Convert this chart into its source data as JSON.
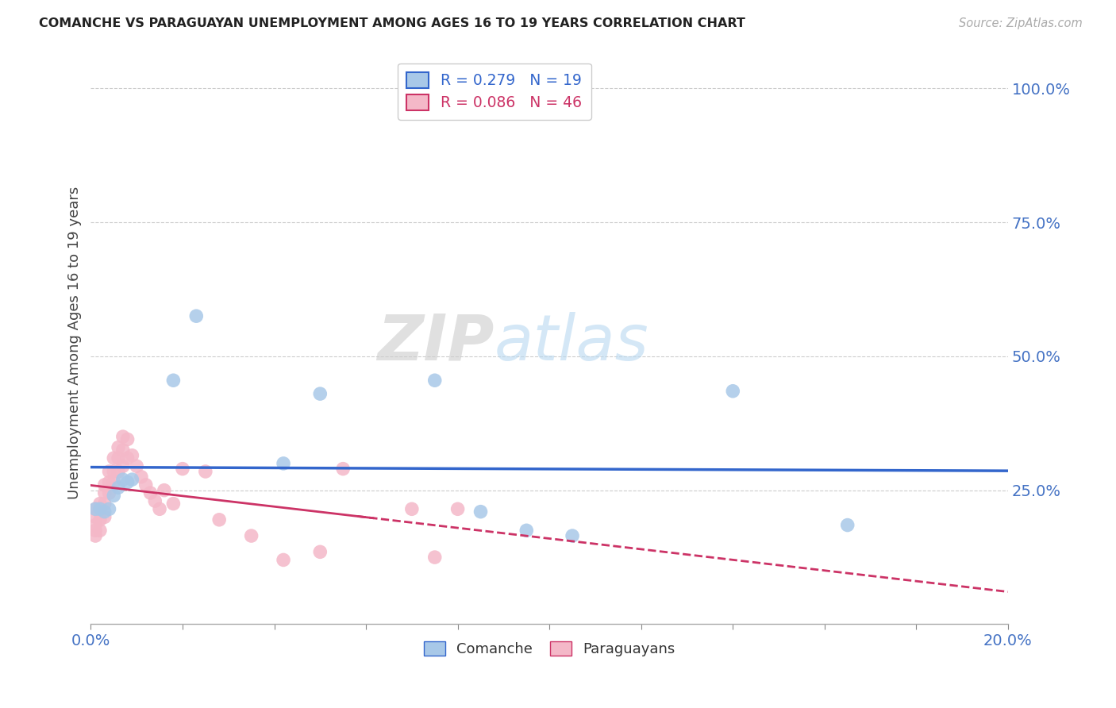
{
  "title": "COMANCHE VS PARAGUAYAN UNEMPLOYMENT AMONG AGES 16 TO 19 YEARS CORRELATION CHART",
  "source": "Source: ZipAtlas.com",
  "ylabel": "Unemployment Among Ages 16 to 19 years",
  "legend_comanche": "R = 0.279   N = 19",
  "legend_paraguayan": "R = 0.086   N = 46",
  "watermark_zip": "ZIP",
  "watermark_atlas": "atlas",
  "comanche_color": "#a8c8e8",
  "paraguayan_color": "#f4b8c8",
  "comanche_line_color": "#3366cc",
  "paraguayan_line_color": "#cc3366",
  "comanche_x": [
    0.001,
    0.002,
    0.003,
    0.004,
    0.005,
    0.006,
    0.007,
    0.008,
    0.009,
    0.018,
    0.023,
    0.042,
    0.05,
    0.075,
    0.085,
    0.095,
    0.105,
    0.14,
    0.165
  ],
  "comanche_y": [
    0.215,
    0.215,
    0.21,
    0.215,
    0.24,
    0.255,
    0.27,
    0.265,
    0.27,
    0.455,
    0.575,
    0.3,
    0.43,
    0.455,
    0.21,
    0.175,
    0.165,
    0.435,
    0.185
  ],
  "paraguayan_x": [
    0.001,
    0.001,
    0.001,
    0.001,
    0.001,
    0.002,
    0.002,
    0.002,
    0.002,
    0.003,
    0.003,
    0.003,
    0.003,
    0.004,
    0.004,
    0.004,
    0.005,
    0.005,
    0.005,
    0.006,
    0.006,
    0.006,
    0.007,
    0.007,
    0.007,
    0.008,
    0.008,
    0.009,
    0.01,
    0.011,
    0.012,
    0.013,
    0.014,
    0.015,
    0.016,
    0.018,
    0.02,
    0.025,
    0.028,
    0.035,
    0.042,
    0.05,
    0.055,
    0.07,
    0.075,
    0.08
  ],
  "paraguayan_y": [
    0.215,
    0.2,
    0.185,
    0.175,
    0.165,
    0.225,
    0.21,
    0.195,
    0.175,
    0.26,
    0.245,
    0.225,
    0.2,
    0.285,
    0.265,
    0.245,
    0.31,
    0.285,
    0.265,
    0.33,
    0.31,
    0.285,
    0.35,
    0.325,
    0.295,
    0.345,
    0.31,
    0.315,
    0.295,
    0.275,
    0.26,
    0.245,
    0.23,
    0.215,
    0.25,
    0.225,
    0.29,
    0.285,
    0.195,
    0.165,
    0.12,
    0.135,
    0.29,
    0.215,
    0.125,
    0.215
  ],
  "xlim": [
    0.0,
    0.2
  ],
  "ylim": [
    0.0,
    1.05
  ],
  "ylabel_right_ticks": [
    "100.0%",
    "75.0%",
    "50.0%",
    "25.0%"
  ],
  "ylabel_right_values": [
    1.0,
    0.75,
    0.5,
    0.25
  ],
  "background_color": "#ffffff",
  "grid_color": "#cccccc",
  "tick_color": "#4472c4"
}
